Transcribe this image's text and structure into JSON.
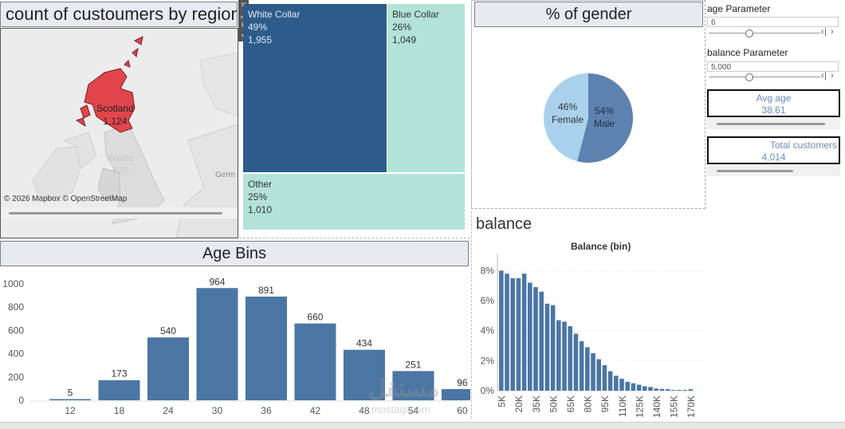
{
  "map": {
    "title": "count of custoumers by region",
    "labels": [
      {
        "name": "Scotland",
        "value": "1,124"
      },
      {
        "name": "Wales",
        "value": "520"
      }
    ],
    "neighbor_label": "Germ",
    "attribution": "© 2026 Mapbox © OpenStreetMap",
    "highlight_color": "#e1454b"
  },
  "treemap": {
    "cells": [
      {
        "label": "White Collar",
        "pct": "49%",
        "count": "1,955",
        "color": "#2d5b8a"
      },
      {
        "label": "Blue Collar",
        "pct": "26%",
        "count": "1,049",
        "color": "#b3e3d8"
      },
      {
        "label": "Other",
        "pct": "25%",
        "count": "1,010",
        "color": "#b3e3d8"
      }
    ]
  },
  "toolbar_icons": [
    "close-icon",
    "expand-icon",
    "filter-icon",
    "more-options-icon"
  ],
  "gender": {
    "title": "% of gender",
    "slices": [
      {
        "label": "Male",
        "pct": "54%",
        "value": 54,
        "color": "#5d82b0"
      },
      {
        "label": "Female",
        "pct": "46%",
        "value": 46,
        "color": "#a9d1ec"
      }
    ]
  },
  "params": {
    "age": {
      "label": "age Parameter",
      "value": "6",
      "slider_fraction": 0.33
    },
    "balance": {
      "label": "balance Parameter",
      "value": "5,000",
      "slider_fraction": 0.33
    }
  },
  "kpis": {
    "avg_age": {
      "label": "Avg age",
      "value": "38.61"
    },
    "total_customers": {
      "label": "Total customers",
      "value": "4,014"
    }
  },
  "age_bins": {
    "title": "Age Bins"
  },
  "balance": {
    "title": "balance",
    "subtitle": "Balance (bin)"
  },
  "watermark": {
    "text": "مستقل",
    "sub": "mostaql.com"
  },
  "chart_data": [
    {
      "type": "bar",
      "name": "age_bins",
      "categories": [
        "12",
        "18",
        "24",
        "30",
        "36",
        "42",
        "48",
        "54",
        "60"
      ],
      "values": [
        5,
        173,
        540,
        964,
        891,
        660,
        434,
        251,
        96
      ],
      "ylim": [
        0,
        1000
      ],
      "yticks": [
        "0",
        "200",
        "400",
        "600",
        "800",
        "1000"
      ],
      "color": "#4b76a4",
      "grid": false
    },
    {
      "type": "bar",
      "name": "balance_bins",
      "title": "Balance (bin)",
      "tick_labels": [
        "5K",
        "20K",
        "35K",
        "50K",
        "65K",
        "80K",
        "95K",
        "110K",
        "125K",
        "140K",
        "155K",
        "170K"
      ],
      "values": [
        8.0,
        7.8,
        7.5,
        7.5,
        7.8,
        7.2,
        6.9,
        6.6,
        5.8,
        5.7,
        4.7,
        4.6,
        4.3,
        3.8,
        3.3,
        2.9,
        2.5,
        2.1,
        1.7,
        1.3,
        1.0,
        0.8,
        0.6,
        0.5,
        0.4,
        0.3,
        0.25,
        0.15,
        0.12,
        0.1,
        0.05,
        0.05,
        0.02,
        0.1
      ],
      "ylim": [
        0,
        8.5
      ],
      "yticks": [
        "0%",
        "2%",
        "4%",
        "6%",
        "8%"
      ],
      "color": "#4b76a4",
      "grid": true
    }
  ]
}
